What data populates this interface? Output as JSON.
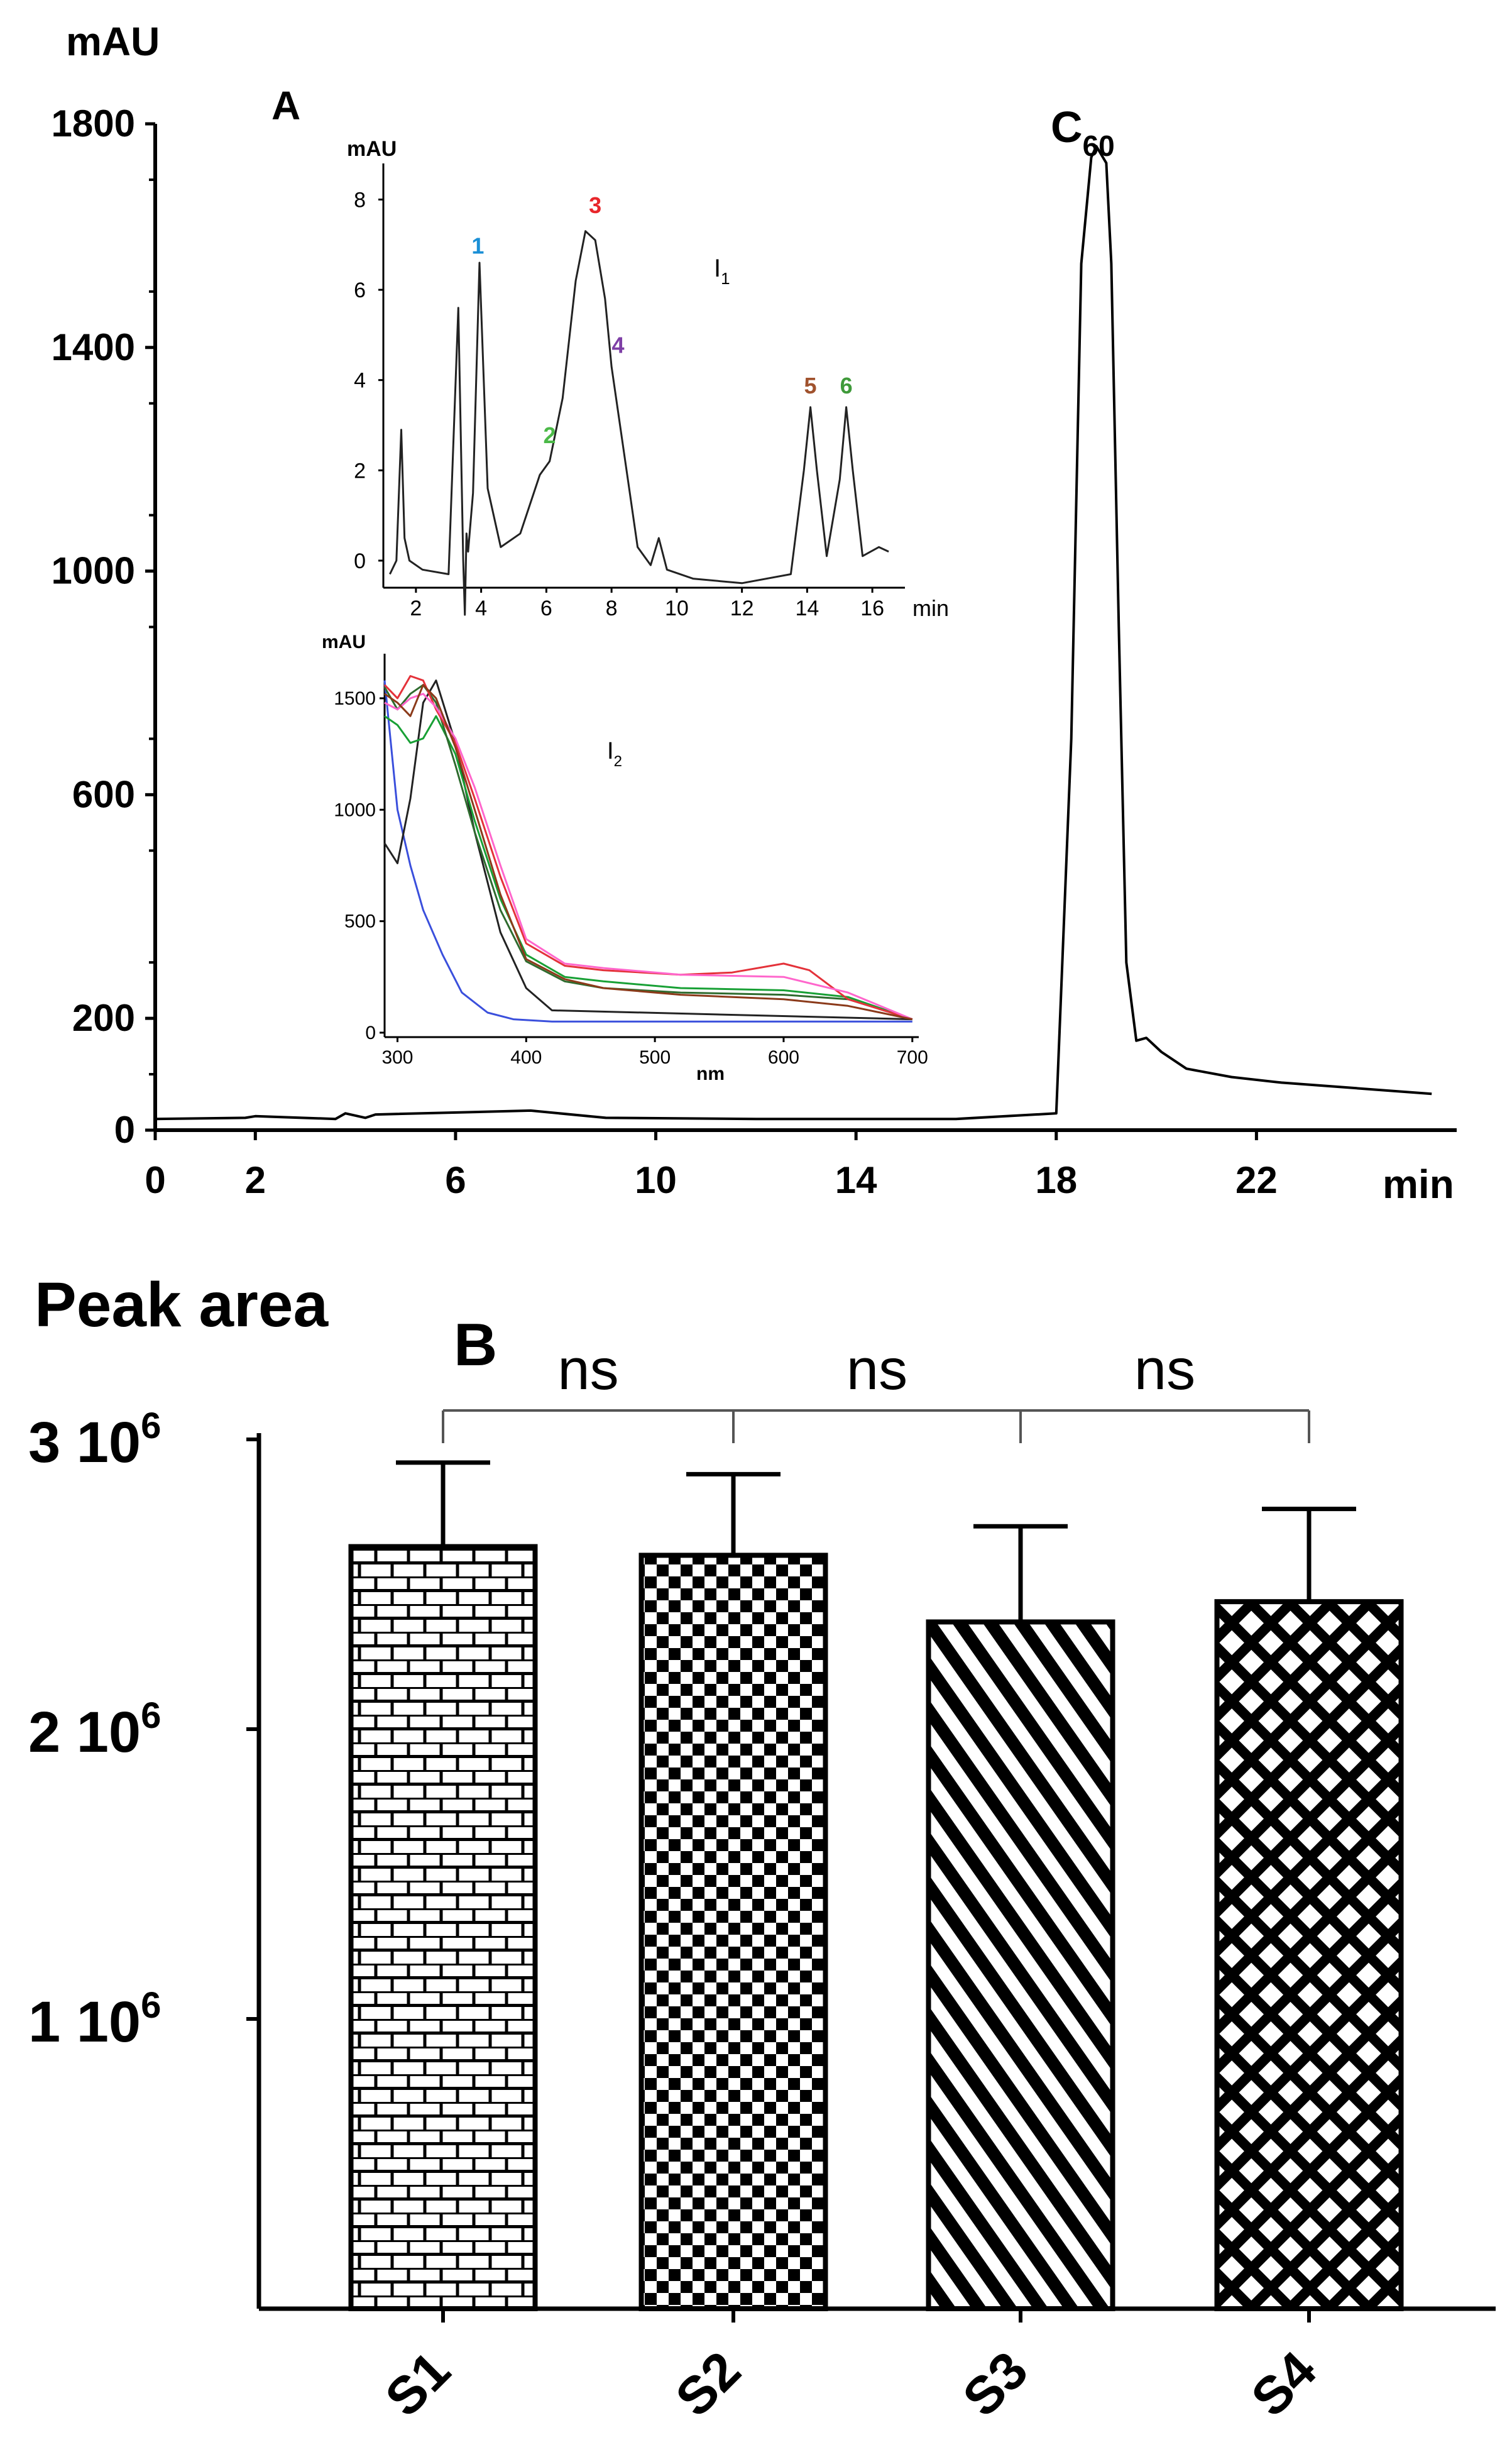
{
  "chart_data": [
    {
      "id": "A",
      "type": "line",
      "panel_label": "A",
      "ylabel": "mAU",
      "xlabel": "min",
      "yticks": [
        0,
        200,
        600,
        1000,
        1400,
        1800
      ],
      "xticks": [
        0,
        2,
        6,
        10,
        14,
        18,
        22
      ],
      "xlim": [
        0,
        26
      ],
      "ylim": [
        0,
        1800
      ],
      "peak_label": "C60",
      "peak_label_main": "C",
      "peak_label_sub": "60",
      "series": [
        {
          "name": "HPLC trace",
          "x": [
            0,
            1.8,
            2.0,
            3.6,
            3.8,
            4.2,
            4.4,
            7.5,
            9,
            12,
            14,
            16,
            18.0,
            18.3,
            18.5,
            18.7,
            18.8,
            19.0,
            19.1,
            19.25,
            19.4,
            19.6,
            19.8,
            20.1,
            20.6,
            21.5,
            22.5,
            24,
            25.5
          ],
          "y": [
            20,
            22,
            25,
            20,
            30,
            22,
            28,
            35,
            22,
            20,
            20,
            20,
            30,
            700,
            1550,
            1740,
            1760,
            1730,
            1550,
            900,
            300,
            160,
            165,
            140,
            110,
            95,
            85,
            75,
            65
          ]
        }
      ]
    },
    {
      "id": "I1",
      "type": "line",
      "label": "I",
      "label_sub": "1",
      "ylabel": "mAU",
      "xlabel": "min",
      "yticks": [
        0,
        2,
        4,
        6,
        8
      ],
      "xticks": [
        2,
        4,
        6,
        8,
        10,
        12,
        14,
        16
      ],
      "xlim": [
        1,
        17
      ],
      "ylim": [
        -0.6,
        8.8
      ],
      "peaks": [
        {
          "label": "1",
          "x": 3.9,
          "y": 6.8,
          "color": "#1a8fd6"
        },
        {
          "label": "2",
          "x": 6.1,
          "y": 2.6,
          "color": "#4bb948"
        },
        {
          "label": "3",
          "x": 7.5,
          "y": 7.7,
          "color": "#e8262b"
        },
        {
          "label": "4",
          "x": 8.2,
          "y": 4.6,
          "color": "#7e3fa6"
        },
        {
          "label": "5",
          "x": 14.1,
          "y": 3.7,
          "color": "#a0522d"
        },
        {
          "label": "6",
          "x": 15.2,
          "y": 3.7,
          "color": "#3f9a3a"
        }
      ],
      "series": [
        {
          "name": "trace",
          "x": [
            1.2,
            1.4,
            1.55,
            1.65,
            1.8,
            2.2,
            3.0,
            3.3,
            3.45,
            3.5,
            3.55,
            3.6,
            3.75,
            3.95,
            4.2,
            4.6,
            5.2,
            5.8,
            6.1,
            6.5,
            6.9,
            7.2,
            7.5,
            7.8,
            8.0,
            8.2,
            8.5,
            8.8,
            9.2,
            9.45,
            9.7,
            10.5,
            12.0,
            13.5,
            13.9,
            14.1,
            14.3,
            14.6,
            15.0,
            15.2,
            15.4,
            15.7,
            16.2,
            16.5
          ],
          "y": [
            -0.3,
            0.0,
            2.9,
            0.5,
            0.0,
            -0.2,
            -0.3,
            5.6,
            0.0,
            -1.2,
            0.6,
            0.2,
            1.5,
            6.6,
            1.6,
            0.3,
            0.6,
            1.9,
            2.2,
            3.6,
            6.2,
            7.3,
            7.1,
            5.8,
            4.3,
            3.3,
            1.8,
            0.3,
            -0.1,
            0.5,
            -0.2,
            -0.4,
            -0.5,
            -0.3,
            2.0,
            3.4,
            2.0,
            0.1,
            1.8,
            3.4,
            2.0,
            0.1,
            0.3,
            0.2
          ]
        }
      ]
    },
    {
      "id": "I2",
      "type": "line",
      "label": "I",
      "label_sub": "2",
      "ylabel": "mAU",
      "xlabel": "nm",
      "yticks": [
        0,
        500,
        1000,
        1500
      ],
      "xticks": [
        300,
        400,
        500,
        600,
        700
      ],
      "xlim": [
        290,
        705
      ],
      "ylim": [
        -20,
        1700
      ],
      "series": [
        {
          "name": "blue",
          "color": "#3a4fdc",
          "x": [
            290,
            300,
            310,
            320,
            335,
            350,
            370,
            390,
            420,
            700
          ],
          "y": [
            1580,
            1000,
            750,
            550,
            350,
            180,
            90,
            60,
            50,
            50
          ]
        },
        {
          "name": "black",
          "color": "#222222",
          "x": [
            290,
            300,
            310,
            320,
            330,
            345,
            360,
            380,
            400,
            420,
            700
          ],
          "y": [
            850,
            760,
            1050,
            1480,
            1580,
            1300,
            900,
            450,
            200,
            100,
            60
          ]
        },
        {
          "name": "green",
          "color": "#18a035",
          "x": [
            290,
            300,
            310,
            320,
            330,
            345,
            360,
            380,
            400,
            430,
            460,
            520,
            600,
            650,
            700
          ],
          "y": [
            1420,
            1380,
            1300,
            1320,
            1420,
            1250,
            950,
            600,
            350,
            250,
            230,
            200,
            190,
            160,
            60
          ]
        },
        {
          "name": "dark green",
          "color": "#2e6b2e",
          "x": [
            290,
            300,
            310,
            320,
            330,
            345,
            360,
            380,
            400,
            430,
            460,
            520,
            600,
            650,
            700
          ],
          "y": [
            1550,
            1450,
            1520,
            1560,
            1480,
            1200,
            900,
            550,
            320,
            230,
            200,
            180,
            170,
            150,
            60
          ]
        },
        {
          "name": "red",
          "color": "#e4323a",
          "x": [
            290,
            300,
            310,
            320,
            330,
            345,
            360,
            380,
            400,
            430,
            460,
            520,
            560,
            600,
            620,
            650,
            700
          ],
          "y": [
            1560,
            1500,
            1600,
            1580,
            1450,
            1300,
            1050,
            700,
            400,
            300,
            280,
            260,
            270,
            310,
            280,
            150,
            60
          ]
        },
        {
          "name": "pink",
          "color": "#ff66cc",
          "x": [
            290,
            300,
            310,
            320,
            330,
            345,
            360,
            380,
            400,
            430,
            460,
            520,
            600,
            650,
            700
          ],
          "y": [
            1480,
            1450,
            1500,
            1520,
            1460,
            1320,
            1100,
            750,
            420,
            310,
            290,
            260,
            250,
            180,
            60
          ]
        },
        {
          "name": "brown",
          "color": "#8b3a1a",
          "x": [
            290,
            300,
            310,
            320,
            330,
            345,
            360,
            380,
            400,
            430,
            460,
            520,
            600,
            650,
            700
          ],
          "y": [
            1520,
            1480,
            1420,
            1560,
            1500,
            1280,
            1000,
            620,
            330,
            240,
            200,
            170,
            150,
            120,
            60
          ]
        }
      ]
    },
    {
      "id": "B",
      "type": "bar",
      "panel_label": "B",
      "ylabel": "Peak area",
      "ylim": [
        0,
        3000000
      ],
      "yticks": [
        {
          "value": 1000000,
          "label": "1 10",
          "exp": "6"
        },
        {
          "value": 2000000,
          "label": "2 10",
          "exp": "6"
        },
        {
          "value": 3000000,
          "label": "3 10",
          "exp": "6"
        }
      ],
      "categories": [
        "S1",
        "S2",
        "S3",
        "S4"
      ],
      "values": [
        2630000,
        2600000,
        2370000,
        2440000
      ],
      "errors": [
        290000,
        280000,
        330000,
        320000
      ],
      "patterns": [
        "brick",
        "checker",
        "diagonal",
        "lattice"
      ],
      "significance": [
        "ns",
        "ns",
        "ns"
      ]
    }
  ]
}
